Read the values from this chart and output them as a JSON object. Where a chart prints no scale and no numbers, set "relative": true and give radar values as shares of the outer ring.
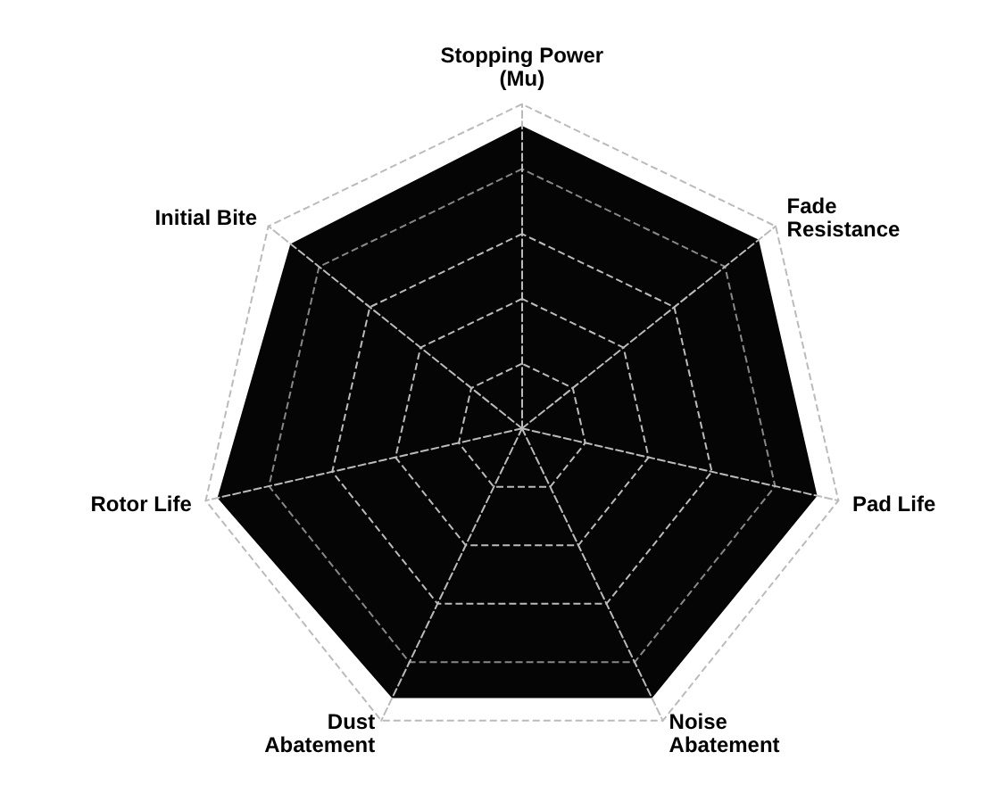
{
  "chart_data": {
    "type": "radar",
    "relative": true,
    "grid": true,
    "categories": [
      "Stopping Power\n(Mu)",
      "Fade\nResistance",
      "Pad Life",
      "Noise\nAbatement",
      "Dust\nAbatement",
      "Rotor Life",
      "Initial Bite"
    ],
    "series": [
      {
        "color": "#050505",
        "values": [
          0.93,
          0.93,
          0.93,
          0.92,
          0.92,
          0.96,
          0.91
        ]
      }
    ]
  }
}
